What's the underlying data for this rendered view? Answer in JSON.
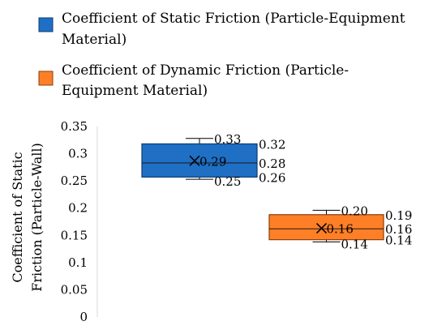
{
  "chart_data": {
    "type": "boxplot",
    "title": "",
    "xlabel": "",
    "ylabel_lines": [
      "Coefficient of Static",
      "Friction (Particle-Wall)"
    ],
    "ylim": [
      0,
      0.35
    ],
    "yticks": [
      "0",
      "0.05",
      "0.1",
      "0.15",
      "0.2",
      "0.25",
      "0.3",
      "0.35"
    ],
    "legend_position": "top",
    "series": [
      {
        "name_lines": [
          "Coefficient of Static Friction (Particle-Equipment",
          "Material)"
        ],
        "color": "#1f6fc5",
        "border": "#0c3d73",
        "min": 0.253,
        "q1": 0.257,
        "median": 0.283,
        "mean": 0.287,
        "q3": 0.318,
        "max": 0.328,
        "labels": {
          "max": "0.33",
          "q3": "0.32",
          "mean": "0.29",
          "median": "0.28",
          "q1": "0.26",
          "min": "0.25"
        }
      },
      {
        "name_lines": [
          "Coefficient of Dynamic Friction (Particle-",
          "Equipment Material)"
        ],
        "color": "#ff7f27",
        "border": "#8a3d08",
        "min": 0.138,
        "q1": 0.142,
        "median": 0.162,
        "mean": 0.163,
        "q3": 0.188,
        "max": 0.196,
        "labels": {
          "max": "0.20",
          "q3": "0.19",
          "mean": "0.16",
          "median": "0.16",
          "q1": "0.14",
          "min": "0.14"
        }
      }
    ]
  }
}
